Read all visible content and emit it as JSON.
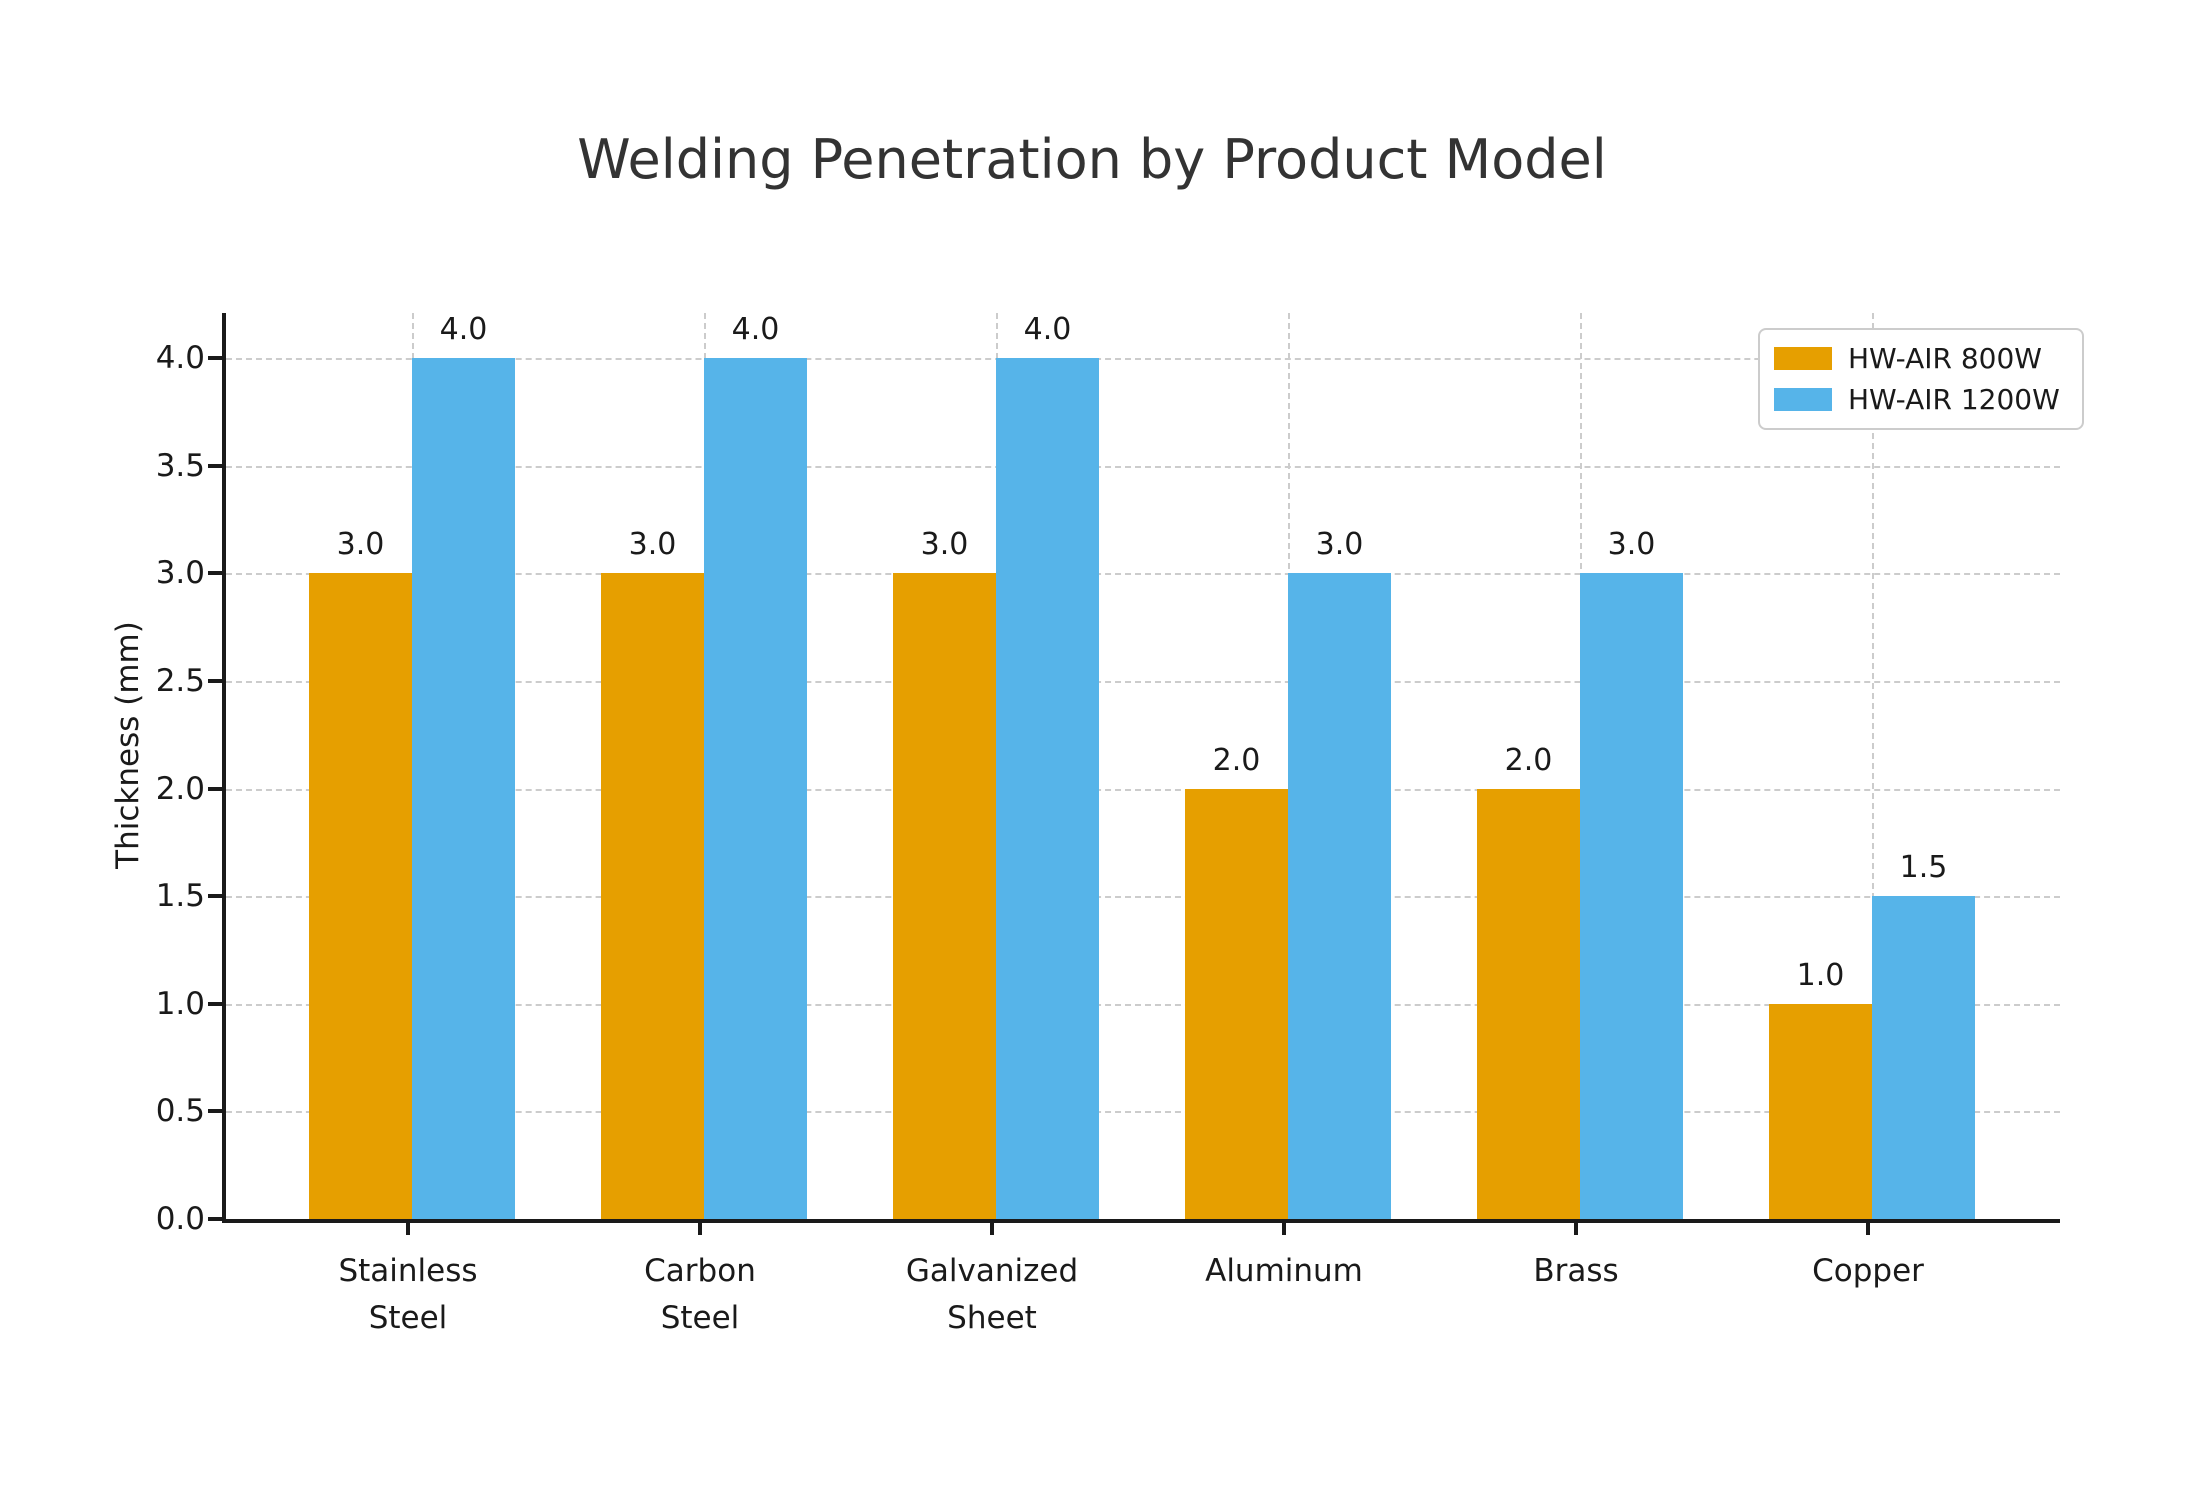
{
  "title": "Welding Penetration by Product Model",
  "chart_data": {
    "type": "bar",
    "title": "Welding Penetration by Product Model",
    "categories": [
      "Stainless\nSteel",
      "Carbon\nSteel",
      "Galvanized\nSheet",
      "Aluminum",
      "Brass",
      "Copper"
    ],
    "series": [
      {
        "name": "HW-AIR 800W",
        "color": "#E69F00",
        "values": [
          3.0,
          3.0,
          3.0,
          2.0,
          2.0,
          1.0
        ]
      },
      {
        "name": "HW-AIR 1200W",
        "color": "#56B4E9",
        "values": [
          4.0,
          4.0,
          4.0,
          3.0,
          3.0,
          1.5
        ]
      }
    ],
    "xlabel": "",
    "ylabel": "Thickness (mm)",
    "yticks": [
      0.0,
      0.5,
      1.0,
      1.5,
      2.0,
      2.5,
      3.0,
      3.5,
      4.0
    ],
    "ylim": [
      0,
      4.21
    ],
    "grid": "both-dashed",
    "legend_position": "upper right",
    "bar_value_labels": true,
    "value_label_decimals": 1
  },
  "colors": {
    "series_800w": "#E69F00",
    "series_1200w": "#56B4E9",
    "axis": "#1a1a1a",
    "grid": "#cccccc",
    "title_text": "#333333",
    "background": "#ffffff"
  }
}
